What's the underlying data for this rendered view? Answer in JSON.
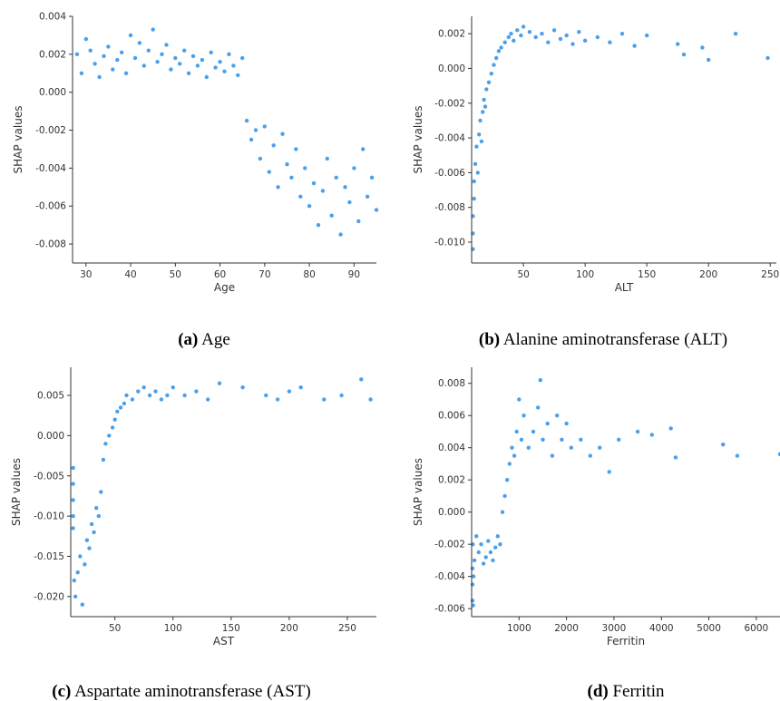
{
  "colors": {
    "point": "#1e88e5",
    "axis": "#333333"
  },
  "chart_data": [
    {
      "type": "scatter",
      "xlabel": "Age",
      "ylabel": "SHAP values",
      "xlim": [
        27,
        95
      ],
      "ylim": [
        -0.009,
        0.004
      ],
      "xticks": [
        30,
        40,
        50,
        60,
        70,
        80,
        90
      ],
      "yticks": [
        -0.008,
        -0.006,
        -0.004,
        -0.002,
        0.0,
        0.002,
        0.004
      ],
      "caption_tag": "(a)",
      "caption_text": "Age",
      "points": [
        [
          28,
          0.002
        ],
        [
          29,
          0.001
        ],
        [
          30,
          0.0028
        ],
        [
          31,
          0.0022
        ],
        [
          32,
          0.0015
        ],
        [
          33,
          0.0008
        ],
        [
          34,
          0.0019
        ],
        [
          35,
          0.0024
        ],
        [
          36,
          0.0012
        ],
        [
          37,
          0.0017
        ],
        [
          38,
          0.0021
        ],
        [
          39,
          0.001
        ],
        [
          40,
          0.003
        ],
        [
          41,
          0.0018
        ],
        [
          42,
          0.0026
        ],
        [
          43,
          0.0014
        ],
        [
          44,
          0.0022
        ],
        [
          45,
          0.0033
        ],
        [
          46,
          0.0016
        ],
        [
          47,
          0.002
        ],
        [
          48,
          0.0025
        ],
        [
          49,
          0.0012
        ],
        [
          50,
          0.0018
        ],
        [
          51,
          0.0015
        ],
        [
          52,
          0.0022
        ],
        [
          53,
          0.001
        ],
        [
          54,
          0.0019
        ],
        [
          55,
          0.0014
        ],
        [
          56,
          0.0017
        ],
        [
          57,
          0.0008
        ],
        [
          58,
          0.0021
        ],
        [
          59,
          0.0013
        ],
        [
          60,
          0.0016
        ],
        [
          61,
          0.0011
        ],
        [
          62,
          0.002
        ],
        [
          63,
          0.0014
        ],
        [
          64,
          0.0009
        ],
        [
          65,
          0.0018
        ],
        [
          66,
          -0.0015
        ],
        [
          67,
          -0.0025
        ],
        [
          68,
          -0.002
        ],
        [
          69,
          -0.0035
        ],
        [
          70,
          -0.0018
        ],
        [
          71,
          -0.0042
        ],
        [
          72,
          -0.0028
        ],
        [
          73,
          -0.005
        ],
        [
          74,
          -0.0022
        ],
        [
          75,
          -0.0038
        ],
        [
          76,
          -0.0045
        ],
        [
          77,
          -0.003
        ],
        [
          78,
          -0.0055
        ],
        [
          79,
          -0.004
        ],
        [
          80,
          -0.006
        ],
        [
          81,
          -0.0048
        ],
        [
          82,
          -0.007
        ],
        [
          83,
          -0.0052
        ],
        [
          84,
          -0.0035
        ],
        [
          85,
          -0.0065
        ],
        [
          86,
          -0.0045
        ],
        [
          87,
          -0.0075
        ],
        [
          88,
          -0.005
        ],
        [
          89,
          -0.0058
        ],
        [
          90,
          -0.004
        ],
        [
          91,
          -0.0068
        ],
        [
          92,
          -0.003
        ],
        [
          93,
          -0.0055
        ],
        [
          94,
          -0.0045
        ],
        [
          95,
          -0.0062
        ]
      ]
    },
    {
      "type": "scatter",
      "xlabel": "ALT",
      "ylabel": "SHAP values",
      "xlim": [
        8,
        255
      ],
      "ylim": [
        -0.0112,
        0.003
      ],
      "xticks": [
        50,
        100,
        150,
        200,
        250
      ],
      "yticks": [
        -0.01,
        -0.008,
        -0.006,
        -0.004,
        -0.002,
        0.0,
        0.002
      ],
      "caption_tag": "(b)",
      "caption_text": "Alanine aminotransferase (ALT)",
      "points": [
        [
          9,
          -0.0104
        ],
        [
          9,
          -0.0095
        ],
        [
          9,
          -0.0085
        ],
        [
          10,
          -0.0075
        ],
        [
          10,
          -0.0065
        ],
        [
          11,
          -0.0055
        ],
        [
          12,
          -0.0045
        ],
        [
          13,
          -0.006
        ],
        [
          14,
          -0.0038
        ],
        [
          15,
          -0.003
        ],
        [
          16,
          -0.0042
        ],
        [
          17,
          -0.0025
        ],
        [
          18,
          -0.0018
        ],
        [
          19,
          -0.0022
        ],
        [
          20,
          -0.0012
        ],
        [
          22,
          -0.0008
        ],
        [
          24,
          -0.0003
        ],
        [
          26,
          0.0002
        ],
        [
          28,
          0.0006
        ],
        [
          30,
          0.001
        ],
        [
          32,
          0.0012
        ],
        [
          35,
          0.0015
        ],
        [
          38,
          0.0018
        ],
        [
          40,
          0.002
        ],
        [
          42,
          0.0016
        ],
        [
          45,
          0.0022
        ],
        [
          48,
          0.0019
        ],
        [
          50,
          0.0024
        ],
        [
          55,
          0.0021
        ],
        [
          60,
          0.0018
        ],
        [
          65,
          0.002
        ],
        [
          70,
          0.0015
        ],
        [
          75,
          0.0022
        ],
        [
          80,
          0.0017
        ],
        [
          85,
          0.0019
        ],
        [
          90,
          0.0014
        ],
        [
          95,
          0.0021
        ],
        [
          100,
          0.0016
        ],
        [
          110,
          0.0018
        ],
        [
          120,
          0.0015
        ],
        [
          130,
          0.002
        ],
        [
          140,
          0.0013
        ],
        [
          150,
          0.0019
        ],
        [
          175,
          0.0014
        ],
        [
          180,
          0.0008
        ],
        [
          195,
          0.0012
        ],
        [
          200,
          0.0005
        ],
        [
          222,
          0.002
        ],
        [
          248,
          0.0006
        ]
      ]
    },
    {
      "type": "scatter",
      "xlabel": "AST",
      "ylabel": "SHAP values",
      "xlim": [
        12,
        275
      ],
      "ylim": [
        -0.0225,
        0.0085
      ],
      "xticks": [
        50,
        100,
        150,
        200,
        250
      ],
      "yticks": [
        -0.02,
        -0.015,
        -0.01,
        -0.005,
        0.0,
        0.005
      ],
      "caption_tag": "(c)",
      "caption_text": "Aspartate aminotransferase (AST)",
      "points": [
        [
          14,
          -0.004
        ],
        [
          14,
          -0.006
        ],
        [
          14,
          -0.008
        ],
        [
          14,
          -0.01
        ],
        [
          14,
          -0.0115
        ],
        [
          15,
          -0.018
        ],
        [
          16,
          -0.02
        ],
        [
          18,
          -0.017
        ],
        [
          20,
          -0.015
        ],
        [
          22,
          -0.021
        ],
        [
          24,
          -0.016
        ],
        [
          26,
          -0.013
        ],
        [
          28,
          -0.014
        ],
        [
          30,
          -0.011
        ],
        [
          32,
          -0.012
        ],
        [
          34,
          -0.009
        ],
        [
          36,
          -0.01
        ],
        [
          38,
          -0.007
        ],
        [
          40,
          -0.003
        ],
        [
          42,
          -0.001
        ],
        [
          45,
          0.0
        ],
        [
          48,
          0.001
        ],
        [
          50,
          0.002
        ],
        [
          52,
          0.003
        ],
        [
          55,
          0.0035
        ],
        [
          58,
          0.004
        ],
        [
          60,
          0.005
        ],
        [
          65,
          0.0045
        ],
        [
          70,
          0.0055
        ],
        [
          75,
          0.006
        ],
        [
          80,
          0.005
        ],
        [
          85,
          0.0055
        ],
        [
          90,
          0.0045
        ],
        [
          95,
          0.005
        ],
        [
          100,
          0.006
        ],
        [
          110,
          0.005
        ],
        [
          120,
          0.0055
        ],
        [
          130,
          0.0045
        ],
        [
          140,
          0.0065
        ],
        [
          160,
          0.006
        ],
        [
          180,
          0.005
        ],
        [
          190,
          0.0045
        ],
        [
          200,
          0.0055
        ],
        [
          210,
          0.006
        ],
        [
          230,
          0.0045
        ],
        [
          245,
          0.005
        ],
        [
          262,
          0.007
        ],
        [
          270,
          0.0045
        ]
      ]
    },
    {
      "type": "scatter",
      "xlabel": "Ferritin",
      "ylabel": "SHAP values",
      "xlim": [
        0,
        6500
      ],
      "ylim": [
        -0.0065,
        0.009
      ],
      "xticks": [
        1000,
        2000,
        3000,
        4000,
        5000,
        6000
      ],
      "yticks": [
        -0.006,
        -0.004,
        -0.002,
        0.0,
        0.002,
        0.004,
        0.006,
        0.008
      ],
      "caption_tag": "(d)",
      "caption_text": "Ferritin",
      "points": [
        [
          20,
          -0.0055
        ],
        [
          20,
          -0.0045
        ],
        [
          20,
          -0.0035
        ],
        [
          25,
          -0.002
        ],
        [
          30,
          -0.0058
        ],
        [
          40,
          -0.004
        ],
        [
          60,
          -0.003
        ],
        [
          100,
          -0.0015
        ],
        [
          150,
          -0.0025
        ],
        [
          200,
          -0.002
        ],
        [
          250,
          -0.0032
        ],
        [
          300,
          -0.0028
        ],
        [
          350,
          -0.0018
        ],
        [
          400,
          -0.0025
        ],
        [
          450,
          -0.003
        ],
        [
          500,
          -0.0022
        ],
        [
          550,
          -0.0015
        ],
        [
          600,
          -0.002
        ],
        [
          650,
          0.0
        ],
        [
          700,
          0.001
        ],
        [
          750,
          0.002
        ],
        [
          800,
          0.003
        ],
        [
          850,
          0.004
        ],
        [
          900,
          0.0035
        ],
        [
          950,
          0.005
        ],
        [
          1000,
          0.007
        ],
        [
          1050,
          0.0045
        ],
        [
          1100,
          0.006
        ],
        [
          1200,
          0.004
        ],
        [
          1300,
          0.005
        ],
        [
          1400,
          0.0065
        ],
        [
          1450,
          0.0082
        ],
        [
          1500,
          0.0045
        ],
        [
          1600,
          0.0055
        ],
        [
          1700,
          0.0035
        ],
        [
          1800,
          0.006
        ],
        [
          1900,
          0.0045
        ],
        [
          2000,
          0.0055
        ],
        [
          2100,
          0.004
        ],
        [
          2300,
          0.0045
        ],
        [
          2500,
          0.0035
        ],
        [
          2700,
          0.004
        ],
        [
          2900,
          0.0025
        ],
        [
          3100,
          0.0045
        ],
        [
          3500,
          0.005
        ],
        [
          3800,
          0.0048
        ],
        [
          4200,
          0.0052
        ],
        [
          4300,
          0.0034
        ],
        [
          5300,
          0.0042
        ],
        [
          5600,
          0.0035
        ],
        [
          6500,
          0.0036
        ]
      ]
    }
  ]
}
